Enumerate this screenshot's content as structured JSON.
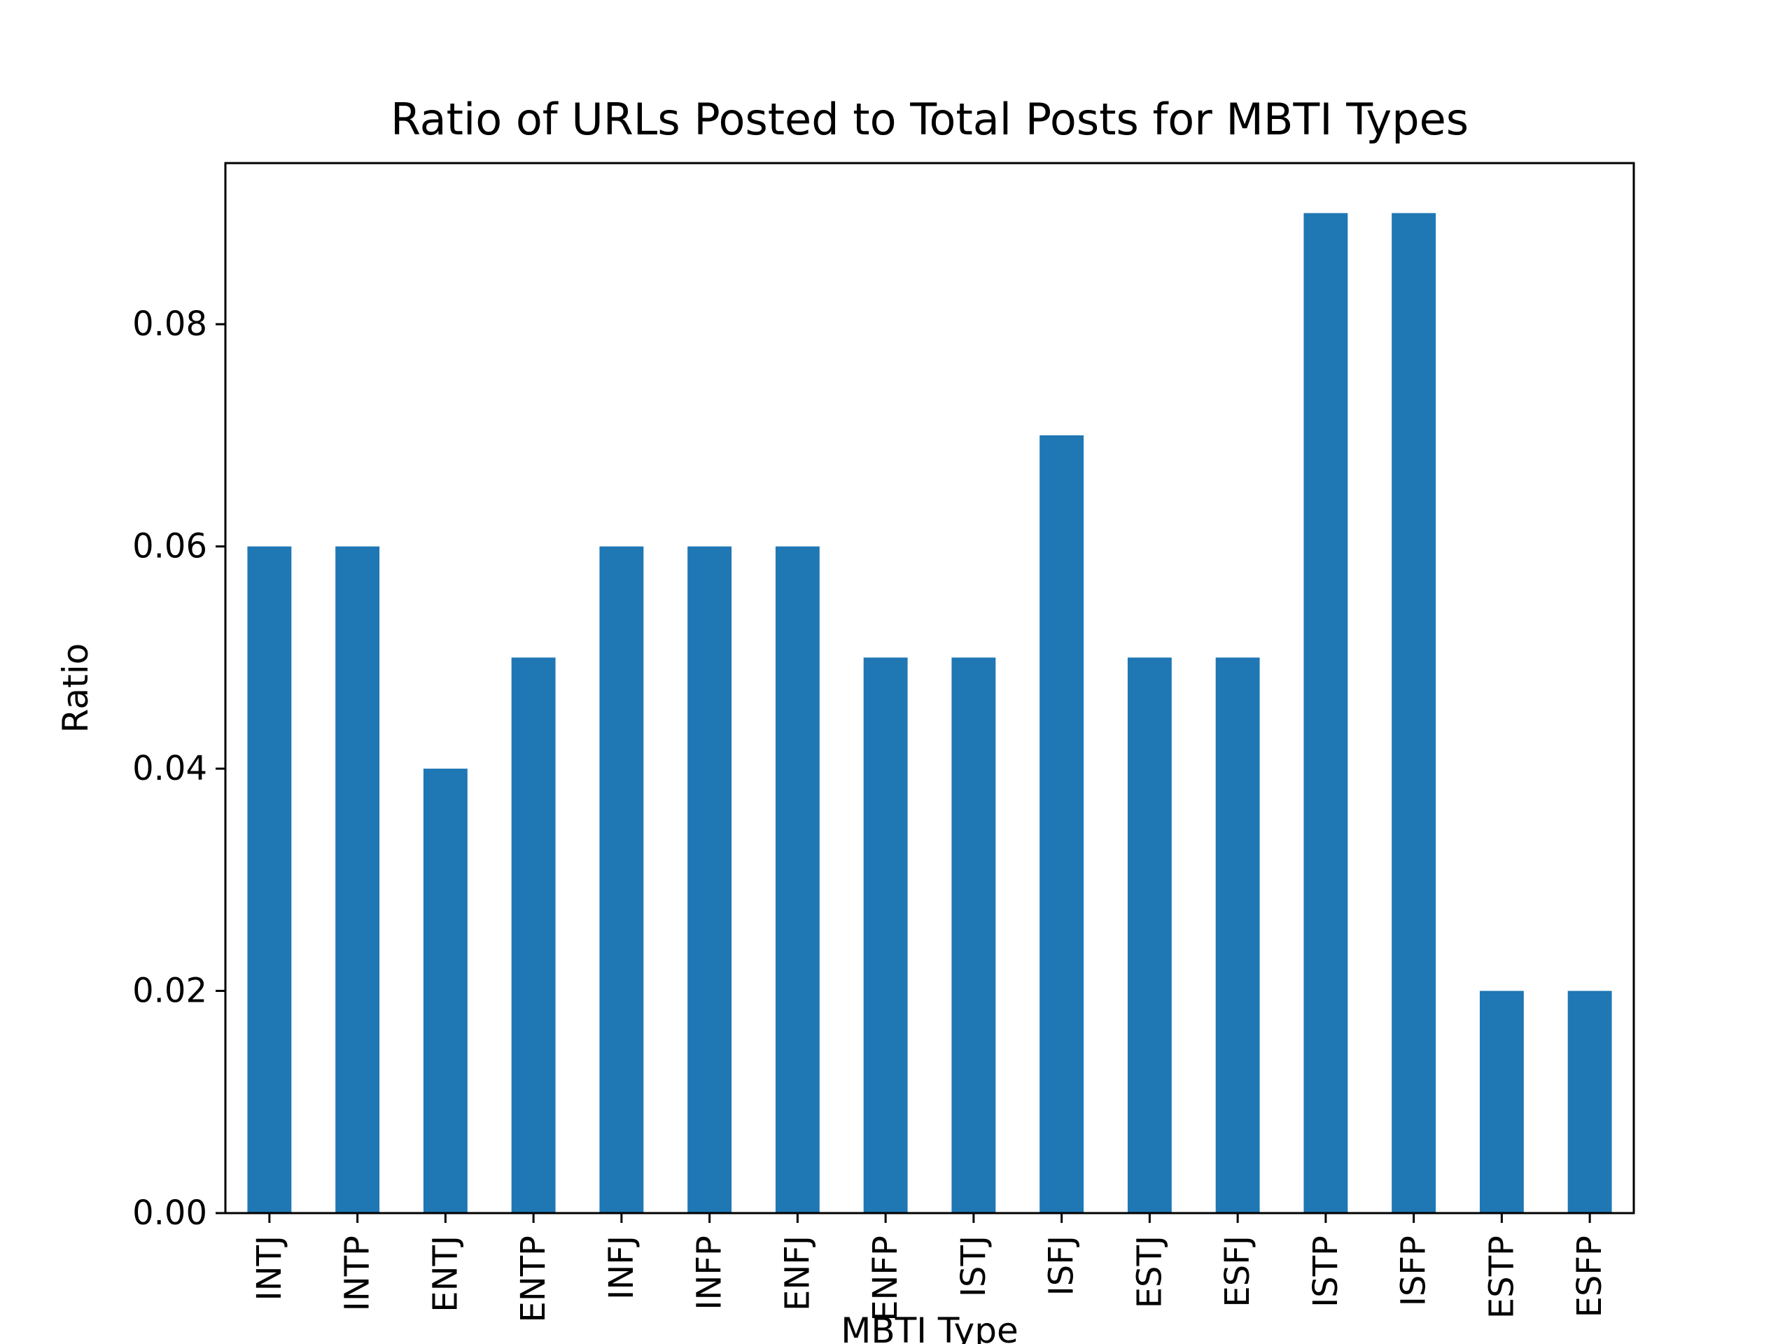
{
  "chart_data": {
    "type": "bar",
    "title": "Ratio of URLs Posted to Total Posts for MBTI Types",
    "xlabel": "MBTI Type",
    "ylabel": "Ratio",
    "categories": [
      "INTJ",
      "INTP",
      "ENTJ",
      "ENTP",
      "INFJ",
      "INFP",
      "ENFJ",
      "ENFP",
      "ISTJ",
      "ISFJ",
      "ESTJ",
      "ESFJ",
      "ISTP",
      "ISFP",
      "ESTP",
      "ESFP"
    ],
    "values": [
      0.06,
      0.06,
      0.04,
      0.05,
      0.06,
      0.06,
      0.06,
      0.05,
      0.05,
      0.07,
      0.05,
      0.05,
      0.09,
      0.09,
      0.02,
      0.02
    ],
    "ylim": [
      0,
      0.0945
    ],
    "yticks": [
      "0.00",
      "0.02",
      "0.04",
      "0.06",
      "0.08"
    ],
    "bar_color": "#1f77b4",
    "grid": false,
    "legend": "none"
  }
}
